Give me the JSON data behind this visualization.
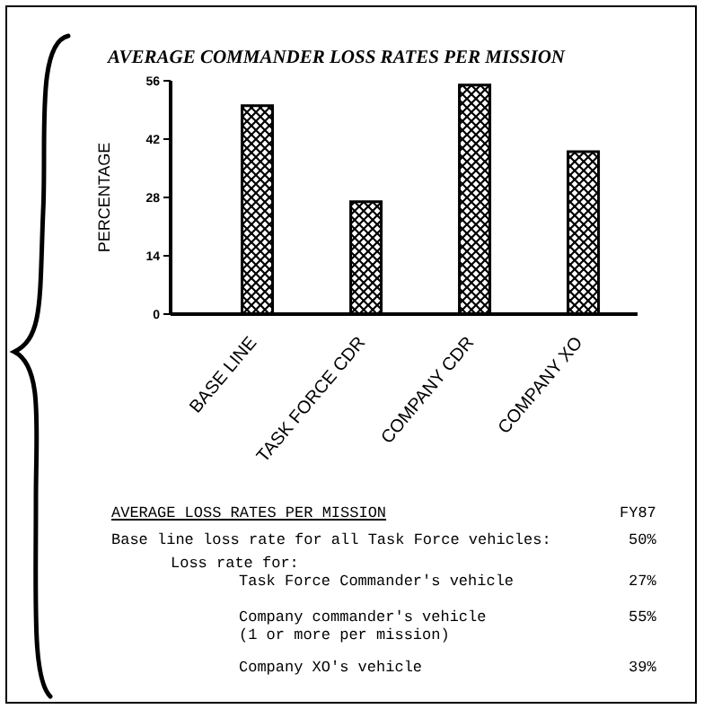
{
  "chart_data": {
    "type": "bar",
    "title": "AVERAGE COMMANDER LOSS RATES PER MISSION",
    "ylabel": "PERCENTAGE",
    "categories": [
      "BASE LINE",
      "TASK FORCE CDR",
      "COMPANY CDR",
      "COMPANY XO"
    ],
    "values": [
      50,
      27,
      55,
      39
    ],
    "color": "#000000",
    "ylim": [
      0,
      56
    ],
    "yticks": [
      0,
      14,
      28,
      42,
      56
    ],
    "grid": false,
    "legend": false,
    "annotations": [
      "AVERAGE LOSS RATES PER MISSION",
      "FY87",
      "Base line loss rate for all Task Force vehicles:",
      "Loss rate for:",
      "Task Force Commander's vehicle",
      "Company commander's vehicle",
      "(1 or more per mission)",
      "Company XO's vehicle",
      "50%",
      "27%",
      "55%",
      "39%"
    ]
  }
}
